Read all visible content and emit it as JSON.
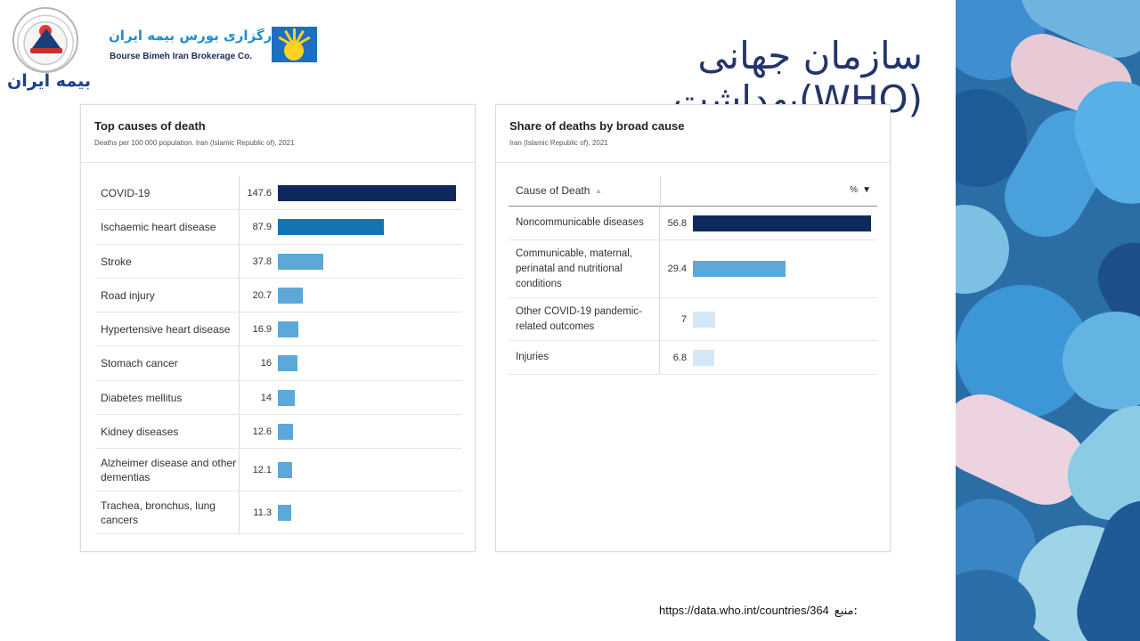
{
  "header": {
    "title": "سازمان جهانی بهداشت(WHO)",
    "insurer_logo_text": "بیمه ایران",
    "broker_name_fa": "کارگزاری بورس بیمه ایران",
    "broker_name_en": "Bourse Bimeh Iran Brokerage Co."
  },
  "left_card": {
    "title": "Top causes of death",
    "subtitle": "Deaths per 100 000 population. Iran (Islamic Republic of), 2021",
    "rows": [
      {
        "label": "COVID-19",
        "value": "147.6",
        "num": 147.6,
        "color": "#0e2a5c"
      },
      {
        "label": "Ischaemic heart disease",
        "value": "87.9",
        "num": 87.9,
        "color": "#1474b2"
      },
      {
        "label": "Stroke",
        "value": "37.8",
        "num": 37.8,
        "color": "#5ba8d9"
      },
      {
        "label": "Road injury",
        "value": "20.7",
        "num": 20.7,
        "color": "#5ba8d9"
      },
      {
        "label": "Hypertensive heart disease",
        "value": "16.9",
        "num": 16.9,
        "color": "#5ba8d9"
      },
      {
        "label": "Stomach cancer",
        "value": "16",
        "num": 16,
        "color": "#5ba8d9"
      },
      {
        "label": "Diabetes mellitus",
        "value": "14",
        "num": 14,
        "color": "#5ba8d9"
      },
      {
        "label": "Kidney diseases",
        "value": "12.6",
        "num": 12.6,
        "color": "#5ba8d9"
      },
      {
        "label": "Alzheimer disease and other dementias",
        "value": "12.1",
        "num": 12.1,
        "color": "#5ba8d9"
      },
      {
        "label": "Trachea, bronchus, lung cancers",
        "value": "11.3",
        "num": 11.3,
        "color": "#5ba8d9"
      }
    ]
  },
  "right_card": {
    "title": "Share of deaths by broad cause",
    "subtitle": "Iran (Islamic Republic of), 2021",
    "col_cause": "Cause of Death",
    "col_pct": "%",
    "rows": [
      {
        "label": "Noncommunicable diseases",
        "value": "56.8",
        "num": 56.8,
        "color": "#0e2a5c"
      },
      {
        "label": "Communicable, maternal, perinatal and nutritional conditions",
        "value": "29.4",
        "num": 29.4,
        "color": "#5ba8d9"
      },
      {
        "label": "Other COVID-19 pandemic-related outcomes",
        "value": "7",
        "num": 7,
        "color": "#d6e7f5"
      },
      {
        "label": "Injuries",
        "value": "6.8",
        "num": 6.8,
        "color": "#d6e7f5"
      }
    ]
  },
  "footer": {
    "source_label": "منبع:",
    "source_url": "https://data.who.int/countries/364"
  }
}
